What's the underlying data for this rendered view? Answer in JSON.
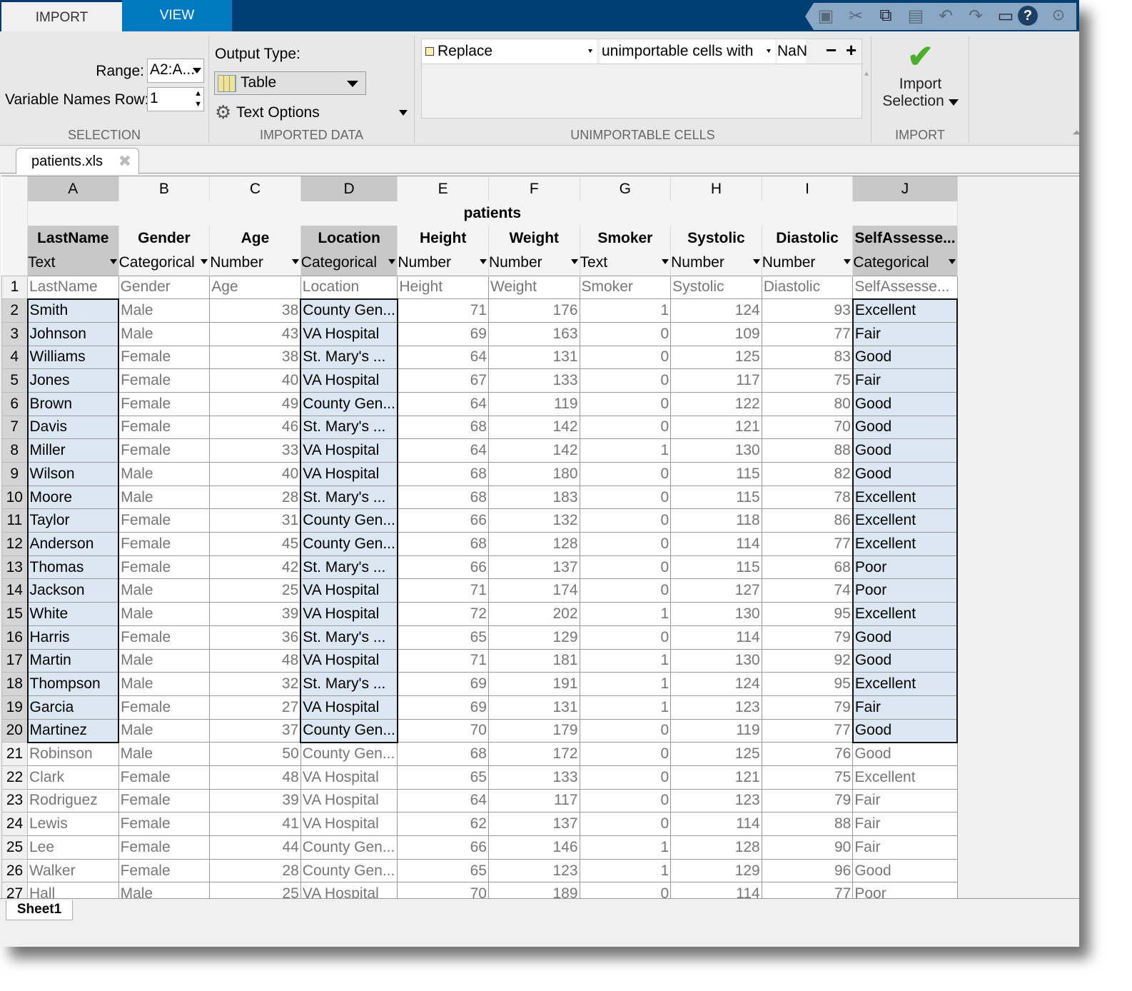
{
  "tabs": {
    "import": "IMPORT",
    "view": "VIEW"
  },
  "quick_access": [
    "save-icon",
    "cut-icon",
    "copy-icon",
    "paste-icon",
    "undo-icon",
    "redo-icon",
    "window-icon",
    "help-icon",
    "options-icon"
  ],
  "selection": {
    "range_label": "Range:",
    "range_value": "A2:A...",
    "varnames_label": "Variable Names Row:",
    "varnames_value": "1",
    "section": "SELECTION"
  },
  "imported_data": {
    "output_label": "Output Type:",
    "output_value": "Table",
    "text_options": "Text Options",
    "section": "IMPORTED DATA"
  },
  "unimportable": {
    "action": "Replace",
    "rule": "unimportable cells with",
    "value": "NaN",
    "minus": "−",
    "plus": "+",
    "section": "UNIMPORTABLE CELLS"
  },
  "import": {
    "line1": "Import",
    "line2": "Selection",
    "section": "IMPORT"
  },
  "file_tab": "patients.xls",
  "sheet_tab": "Sheet1",
  "colors": {
    "selection": "#dbe7f2",
    "tabbar": "#003e74",
    "view_tab": "#0079c1",
    "check": "#4caf2a"
  },
  "columns": [
    "A",
    "B",
    "C",
    "D",
    "E",
    "F",
    "G",
    "H",
    "I",
    "J"
  ],
  "selected_columns": [
    0,
    3,
    9
  ],
  "table_name": "patients",
  "var_names": [
    "LastName",
    "Gender",
    "Age",
    "Location",
    "Height",
    "Weight",
    "Smoker",
    "Systolic",
    "Diastolic",
    "SelfAssesse..."
  ],
  "var_types": [
    "Text",
    "Categorical",
    "Number",
    "Categorical",
    "Number",
    "Number",
    "Text",
    "Number",
    "Number",
    "Categorical"
  ],
  "numeric_columns": [
    2,
    4,
    5,
    6,
    7,
    8
  ],
  "selected_rows": [
    2,
    20
  ],
  "rows": [
    [
      1,
      "LastName",
      "Gender",
      "Age",
      "Location",
      "Height",
      "Weight",
      "Smoker",
      "Systolic",
      "Diastolic",
      "SelfAssesse..."
    ],
    [
      2,
      "Smith",
      "Male",
      "38",
      "County Gen...",
      "71",
      "176",
      "1",
      "124",
      "93",
      "Excellent"
    ],
    [
      3,
      "Johnson",
      "Male",
      "43",
      "VA Hospital",
      "69",
      "163",
      "0",
      "109",
      "77",
      "Fair"
    ],
    [
      4,
      "Williams",
      "Female",
      "38",
      "St. Mary's ...",
      "64",
      "131",
      "0",
      "125",
      "83",
      "Good"
    ],
    [
      5,
      "Jones",
      "Female",
      "40",
      "VA Hospital",
      "67",
      "133",
      "0",
      "117",
      "75",
      "Fair"
    ],
    [
      6,
      "Brown",
      "Female",
      "49",
      "County Gen...",
      "64",
      "119",
      "0",
      "122",
      "80",
      "Good"
    ],
    [
      7,
      "Davis",
      "Female",
      "46",
      "St. Mary's ...",
      "68",
      "142",
      "0",
      "121",
      "70",
      "Good"
    ],
    [
      8,
      "Miller",
      "Female",
      "33",
      "VA Hospital",
      "64",
      "142",
      "1",
      "130",
      "88",
      "Good"
    ],
    [
      9,
      "Wilson",
      "Male",
      "40",
      "VA Hospital",
      "68",
      "180",
      "0",
      "115",
      "82",
      "Good"
    ],
    [
      10,
      "Moore",
      "Male",
      "28",
      "St. Mary's ...",
      "68",
      "183",
      "0",
      "115",
      "78",
      "Excellent"
    ],
    [
      11,
      "Taylor",
      "Female",
      "31",
      "County Gen...",
      "66",
      "132",
      "0",
      "118",
      "86",
      "Excellent"
    ],
    [
      12,
      "Anderson",
      "Female",
      "45",
      "County Gen...",
      "68",
      "128",
      "0",
      "114",
      "77",
      "Excellent"
    ],
    [
      13,
      "Thomas",
      "Female",
      "42",
      "St. Mary's ...",
      "66",
      "137",
      "0",
      "115",
      "68",
      "Poor"
    ],
    [
      14,
      "Jackson",
      "Male",
      "25",
      "VA Hospital",
      "71",
      "174",
      "0",
      "127",
      "74",
      "Poor"
    ],
    [
      15,
      "White",
      "Male",
      "39",
      "VA Hospital",
      "72",
      "202",
      "1",
      "130",
      "95",
      "Excellent"
    ],
    [
      16,
      "Harris",
      "Female",
      "36",
      "St. Mary's ...",
      "65",
      "129",
      "0",
      "114",
      "79",
      "Good"
    ],
    [
      17,
      "Martin",
      "Male",
      "48",
      "VA Hospital",
      "71",
      "181",
      "1",
      "130",
      "92",
      "Good"
    ],
    [
      18,
      "Thompson",
      "Male",
      "32",
      "St. Mary's ...",
      "69",
      "191",
      "1",
      "124",
      "95",
      "Excellent"
    ],
    [
      19,
      "Garcia",
      "Female",
      "27",
      "VA Hospital",
      "69",
      "131",
      "1",
      "123",
      "79",
      "Fair"
    ],
    [
      20,
      "Martinez",
      "Male",
      "37",
      "County Gen...",
      "70",
      "179",
      "0",
      "119",
      "77",
      "Good"
    ],
    [
      21,
      "Robinson",
      "Male",
      "50",
      "County Gen...",
      "68",
      "172",
      "0",
      "125",
      "76",
      "Good"
    ],
    [
      22,
      "Clark",
      "Female",
      "48",
      "VA Hospital",
      "65",
      "133",
      "0",
      "121",
      "75",
      "Excellent"
    ],
    [
      23,
      "Rodriguez",
      "Female",
      "39",
      "VA Hospital",
      "64",
      "117",
      "0",
      "123",
      "79",
      "Fair"
    ],
    [
      24,
      "Lewis",
      "Female",
      "41",
      "VA Hospital",
      "62",
      "137",
      "0",
      "114",
      "88",
      "Fair"
    ],
    [
      25,
      "Lee",
      "Female",
      "44",
      "County Gen...",
      "66",
      "146",
      "1",
      "128",
      "90",
      "Fair"
    ],
    [
      26,
      "Walker",
      "Female",
      "28",
      "County Gen...",
      "65",
      "123",
      "1",
      "129",
      "96",
      "Good"
    ],
    [
      27,
      "Hall",
      "Male",
      "25",
      "VA Hospital",
      "70",
      "189",
      "0",
      "114",
      "77",
      "Poor"
    ]
  ]
}
